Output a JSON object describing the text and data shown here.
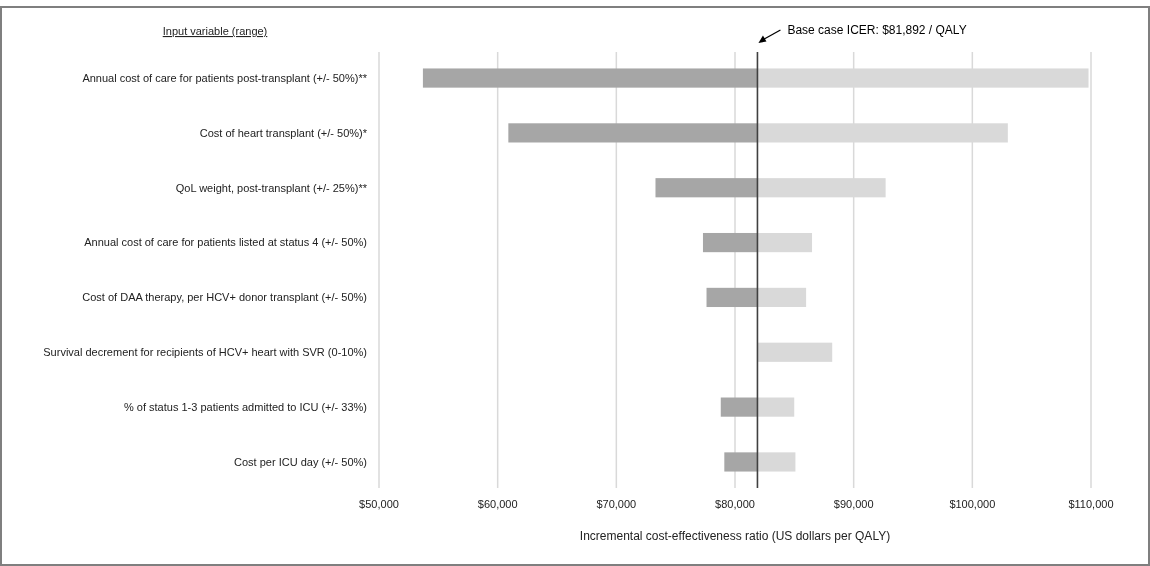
{
  "chart_data": {
    "type": "bar",
    "orientation": "horizontal",
    "xlabel": "Incremental cost-effectiveness ratio (US dollars per QALY)",
    "categories": [
      "Annual cost of care for patients post-transplant (+/- 50%)**",
      "Cost of heart transplant (+/- 50%)*",
      "QoL weight, post-transplant (+/- 25%)**",
      "Annual cost of care for patients listed at status 4 (+/- 50%)",
      "Cost of DAA therapy, per HCV+ donor transplant (+/- 50%)",
      "Survival decrement for recipients of HCV+ heart with SVR (0-10%)",
      "% of status 1-3 patients admitted to ICU (+/- 33%)",
      "Cost per ICU day (+/- 50%)"
    ],
    "series": [
      {
        "color": "#a6a6a6",
        "base": [
          53700,
          60900,
          73300,
          77300,
          77600,
          null,
          78800,
          79100
        ],
        "values": [
          28200,
          21000,
          8600,
          4600,
          4300,
          null,
          3100,
          2800
        ]
      },
      {
        "color": "#d9d9d9",
        "base": [
          81892,
          81892,
          81892,
          81892,
          81892,
          81892,
          81892,
          81892
        ],
        "values": [
          27900,
          21100,
          10800,
          4600,
          4100,
          6300,
          3100,
          3200
        ]
      }
    ],
    "xlim": [
      50000,
      110000
    ],
    "xticks": [
      {
        "value": 50000,
        "label": "$50,000"
      },
      {
        "value": 60000,
        "label": "$60,000"
      },
      {
        "value": 70000,
        "label": "$70,000"
      },
      {
        "value": 80000,
        "label": "$80,000"
      },
      {
        "value": 90000,
        "label": "$90,000"
      },
      {
        "value": 100000,
        "label": "$100,000"
      },
      {
        "value": 110000,
        "label": "$110,000"
      }
    ],
    "grid": "x",
    "ref_lines": [
      {
        "axis": "x",
        "value": 81892,
        "label": "Base case ICER: $81,892 / QALY",
        "color": "#404040"
      }
    ],
    "annotations": [
      "Input variable (range)"
    ]
  }
}
